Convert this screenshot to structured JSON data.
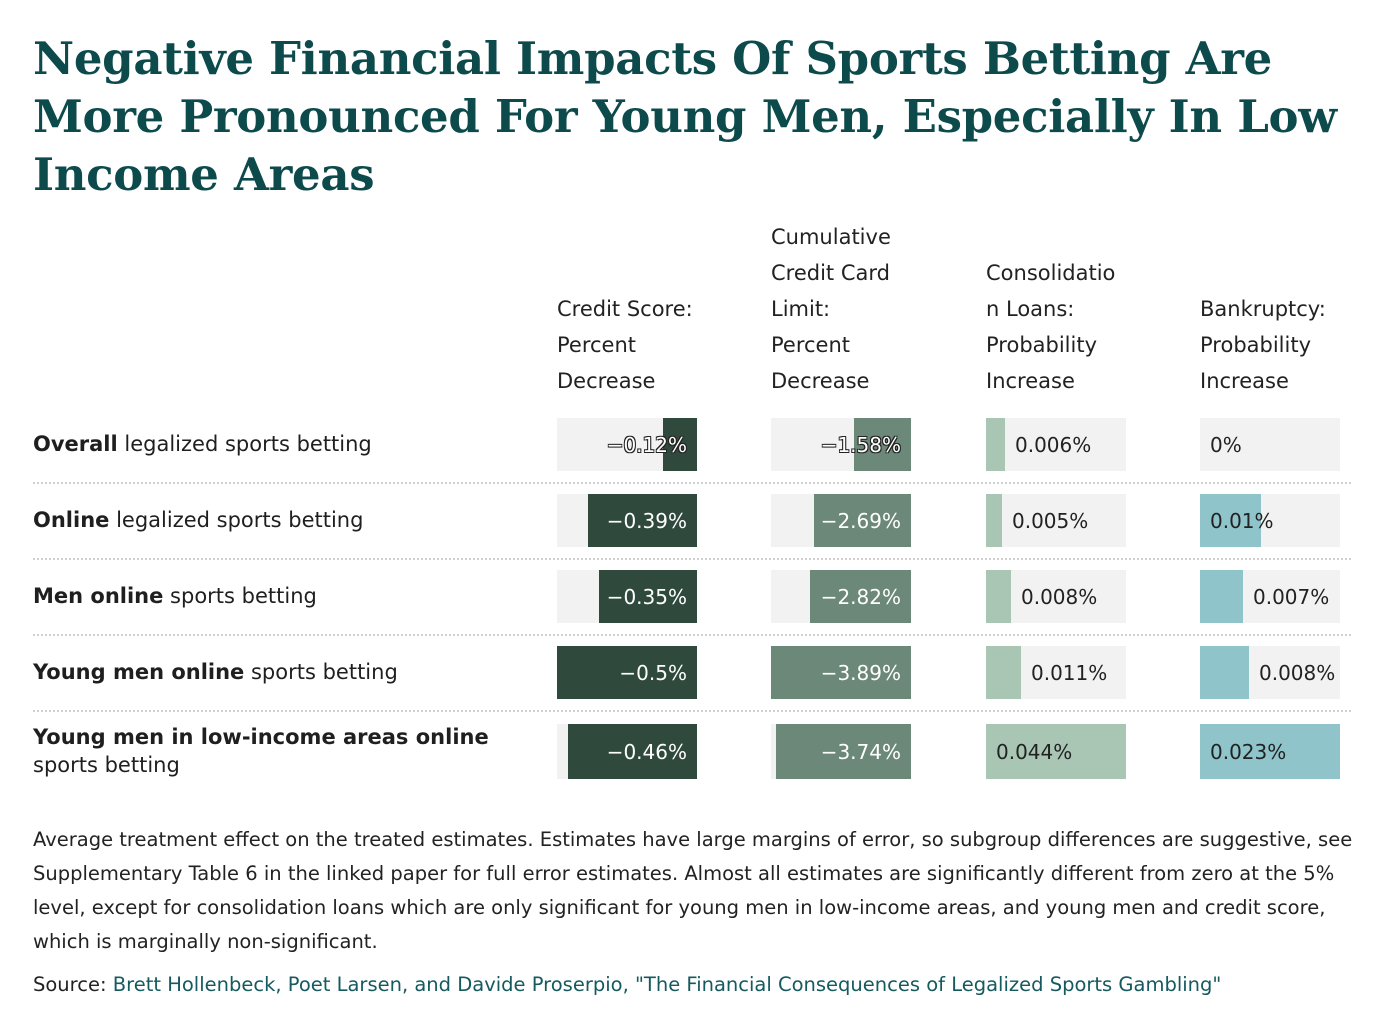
{
  "title": "Negative Financial Impacts Of Sports Betting Are More Pronounced For Young Men, Especially In Low Income Areas",
  "colors": {
    "title": "#0d4a4c",
    "credit_score": "#2f4a3d",
    "credit_limit": "#6b8878",
    "consolidation": "#a9c6b5",
    "bankruptcy": "#8ec4ca",
    "cell_bg": "#f2f2f2"
  },
  "chart_data": {
    "type": "table",
    "columns": [
      {
        "key": "credit_score",
        "label": "Credit Score: Percent Decrease",
        "lines": [
          "Credit Score:",
          "Percent",
          "Decrease"
        ]
      },
      {
        "key": "credit_limit",
        "label": "Cumulative Credit Card Limit: Percent Decrease",
        "lines": [
          "Cumulative",
          "Credit Card",
          "Limit:",
          "Percent",
          "Decrease"
        ]
      },
      {
        "key": "consolidation",
        "label": "Consolidation Loans: Probability Increase",
        "lines": [
          "Consolidatio",
          "n Loans:",
          "Probability",
          "Increase"
        ]
      },
      {
        "key": "bankruptcy",
        "label": "Bankruptcy: Probability Increase",
        "lines": [
          "Bankruptcy:",
          "Probability",
          "Increase"
        ]
      }
    ],
    "rows": [
      {
        "bold": "Overall",
        "rest": " legalized sports betting",
        "values": {
          "credit_score": -0.12,
          "credit_limit": -1.58,
          "consolidation": 0.006,
          "bankruptcy": 0
        },
        "labels": {
          "credit_score": "−0.12%",
          "credit_limit": "−1.58%",
          "consolidation": "0.006%",
          "bankruptcy": "0%"
        }
      },
      {
        "bold": "Online",
        "rest": " legalized sports betting",
        "values": {
          "credit_score": -0.39,
          "credit_limit": -2.69,
          "consolidation": 0.005,
          "bankruptcy": 0.01
        },
        "labels": {
          "credit_score": "−0.39%",
          "credit_limit": "−2.69%",
          "consolidation": "0.005%",
          "bankruptcy": "0.01%"
        }
      },
      {
        "bold": "Men online",
        "rest": " sports betting",
        "values": {
          "credit_score": -0.35,
          "credit_limit": -2.82,
          "consolidation": 0.008,
          "bankruptcy": 0.007
        },
        "labels": {
          "credit_score": "−0.35%",
          "credit_limit": "−2.82%",
          "consolidation": "0.008%",
          "bankruptcy": "0.007%"
        }
      },
      {
        "bold": "Young men online",
        "rest": " sports betting",
        "values": {
          "credit_score": -0.5,
          "credit_limit": -3.89,
          "consolidation": 0.011,
          "bankruptcy": 0.008
        },
        "labels": {
          "credit_score": "−0.5%",
          "credit_limit": "−3.89%",
          "consolidation": "0.011%",
          "bankruptcy": "0.008%"
        }
      },
      {
        "bold": "Young men in low-income areas online",
        "rest": " sports betting",
        "values": {
          "credit_score": -0.46,
          "credit_limit": -3.74,
          "consolidation": 0.044,
          "bankruptcy": 0.023
        },
        "labels": {
          "credit_score": "−0.46%",
          "credit_limit": "−3.74%",
          "consolidation": "0.044%",
          "bankruptcy": "0.023%"
        }
      }
    ],
    "scale_max": {
      "credit_score": 0.5,
      "credit_limit": 3.89,
      "consolidation": 0.044,
      "bankruptcy": 0.023
    }
  },
  "notes": "Average treatment effect on the treated estimates. Estimates have large margins of error, so subgroup differences are suggestive, see Supplementary Table 6 in the linked paper for full error estimates. Almost all estimates are significantly different from zero at the 5% level, except for consolidation loans which are only significant for young men in low-income areas, and young men and credit score, which is marginally non-significant.",
  "source": {
    "prefix": "Source: ",
    "link_text": "Brett Hollenbeck, Poet Larsen, and Davide Proserpio, \"The Financial Consequences of Legalized Sports Gambling\""
  }
}
